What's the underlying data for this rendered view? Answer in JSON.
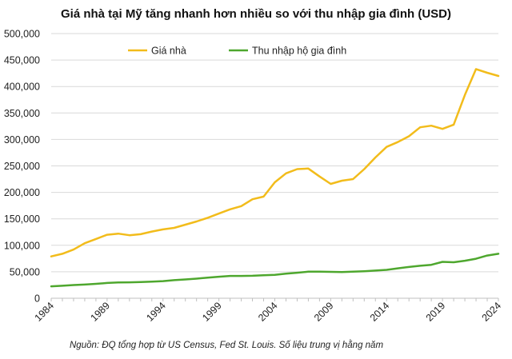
{
  "chart_data": {
    "type": "line",
    "title": "Giá nhà tại Mỹ tăng nhanh hơn nhiều so với thu nhập gia đình (USD)",
    "x": [
      1984,
      1985,
      1986,
      1987,
      1988,
      1989,
      1990,
      1991,
      1992,
      1993,
      1994,
      1995,
      1996,
      1997,
      1998,
      1999,
      2000,
      2001,
      2002,
      2003,
      2004,
      2005,
      2006,
      2007,
      2008,
      2009,
      2010,
      2011,
      2012,
      2013,
      2014,
      2015,
      2016,
      2017,
      2018,
      2019,
      2020,
      2021,
      2022,
      2023,
      2024
    ],
    "series": [
      {
        "name": "Giá nhà",
        "color": "#F2BC1B",
        "values": [
          79000,
          84000,
          92000,
          104000,
          112000,
          120000,
          122000,
          119000,
          121000,
          126000,
          130000,
          133000,
          139000,
          145000,
          152000,
          160000,
          168000,
          174000,
          187000,
          192000,
          219000,
          236000,
          244000,
          245000,
          230000,
          216000,
          222000,
          225000,
          244000,
          266000,
          286000,
          295000,
          306000,
          323000,
          326000,
          320000,
          328000,
          384000,
          433000,
          426000,
          420000
        ]
      },
      {
        "name": "Thu nhập hộ gia đình",
        "color": "#4EA72E",
        "values": [
          22500,
          23600,
          24900,
          25900,
          27200,
          28900,
          29900,
          30100,
          30600,
          31200,
          32300,
          34100,
          35500,
          37000,
          38900,
          40700,
          42100,
          42200,
          42400,
          43300,
          44300,
          46300,
          48200,
          50200,
          50300,
          49800,
          49400,
          50100,
          51000,
          52300,
          53700,
          56500,
          59000,
          61400,
          63200,
          68700,
          68000,
          70800,
          74600,
          80600,
          84000
        ]
      }
    ],
    "xticks": [
      "1984",
      "1989",
      "1994",
      "1999",
      "2004",
      "2009",
      "2014",
      "2019",
      "2024"
    ],
    "yticks": [
      "0",
      "50,000",
      "100,000",
      "150,000",
      "200,000",
      "250,000",
      "300,000",
      "350,000",
      "400,000",
      "450,000",
      "500,000"
    ],
    "ylim": [
      0,
      500000
    ],
    "xlim": [
      1984,
      2024
    ],
    "grid": true,
    "legend_position": "top-left",
    "source": "Nguồn: ĐQ tổng hợp từ US Census, Fed St. Louis. Số liệu trung vị hằng năm"
  }
}
